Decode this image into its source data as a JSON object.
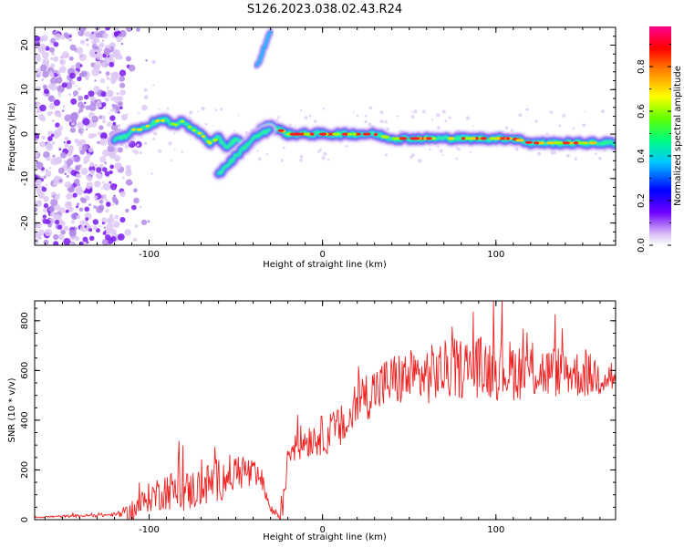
{
  "title": "S126.2023.038.02.43.R24",
  "chart_data": [
    {
      "type": "heatmap",
      "xlabel": "Height of straight line (km)",
      "ylabel": "Frequency (Hz)",
      "xlim": [
        -166,
        169
      ],
      "ylim": [
        -25,
        24
      ],
      "xticks": [
        -100,
        0,
        100
      ],
      "yticks": [
        -20,
        -10,
        0,
        10,
        20
      ],
      "colorbar": {
        "label": "Normalized spectral amplitude",
        "range": [
          0,
          0.98
        ],
        "ticks": [
          0.0,
          0.2,
          0.4,
          0.6,
          0.8
        ],
        "colors": [
          "#ffffff",
          "#d9c0f5",
          "#7000ff",
          "#0000ff",
          "#00c8ff",
          "#00ff80",
          "#80ff00",
          "#ffff00",
          "#ff8000",
          "#ff0000",
          "#ff0080"
        ]
      },
      "signal_trace": {
        "x": [
          -120,
          -115,
          -110,
          -105,
          -100,
          -95,
          -90,
          -85,
          -80,
          -75,
          -70,
          -65,
          -60,
          -55,
          -50,
          -45,
          -40,
          -35,
          -30,
          -25,
          -20,
          -15,
          -10,
          -5,
          0,
          10,
          20,
          30,
          40,
          50,
          60,
          70,
          80,
          90,
          100,
          110,
          120,
          130,
          140,
          150,
          160,
          169
        ],
        "y": [
          -1,
          -1,
          1,
          1,
          2,
          3,
          3,
          2,
          3,
          1,
          0,
          -2,
          -1,
          -3,
          -1,
          -3,
          -1,
          1,
          2,
          1,
          0,
          0,
          0,
          0,
          0,
          0,
          0,
          0,
          -1,
          -1,
          -1,
          -1,
          -1,
          -1,
          -1,
          -1,
          -2,
          -2,
          -2,
          -2,
          -2,
          -2
        ]
      },
      "lower_branch": {
        "x": [
          -60,
          -55,
          -50,
          -45,
          -40,
          -35,
          -30
        ],
        "y": [
          -9,
          -7,
          -5,
          -3,
          -1,
          0,
          1
        ]
      },
      "upper_branch": {
        "x": [
          -38,
          -35,
          -32,
          -30
        ],
        "y": [
          15,
          18,
          21,
          23
        ]
      }
    },
    {
      "type": "line",
      "xlabel": "Height of straight line (km)",
      "ylabel": "SNR (10 * v/v)",
      "xlim": [
        -166,
        169
      ],
      "ylim": [
        0,
        880
      ],
      "xticks": [
        -100,
        0,
        100
      ],
      "yticks": [
        0,
        200,
        400,
        600,
        800
      ],
      "line_color": "#ee2222",
      "envelope": {
        "x": [
          -166,
          -140,
          -120,
          -110,
          -100,
          -90,
          -80,
          -70,
          -60,
          -50,
          -45,
          -40,
          -35,
          -30,
          -25,
          -22,
          -20,
          -15,
          -10,
          -5,
          0,
          5,
          10,
          15,
          20,
          30,
          40,
          50,
          60,
          70,
          80,
          90,
          100,
          110,
          120,
          130,
          140,
          150,
          160,
          169
        ],
        "y": [
          10,
          15,
          20,
          30,
          90,
          120,
          110,
          130,
          160,
          190,
          200,
          170,
          160,
          40,
          20,
          80,
          280,
          300,
          320,
          330,
          340,
          350,
          370,
          380,
          480,
          520,
          560,
          570,
          580,
          600,
          610,
          615,
          610,
          600,
          600,
          590,
          600,
          580,
          580,
          575
        ]
      },
      "noise_amplitude": [
        [
          -166,
          3
        ],
        [
          -120,
          8
        ],
        [
          -110,
          40
        ],
        [
          -90,
          80
        ],
        [
          -60,
          90
        ],
        [
          -40,
          70
        ],
        [
          -30,
          15
        ],
        [
          -22,
          60
        ],
        [
          -15,
          70
        ],
        [
          0,
          80
        ],
        [
          20,
          100
        ],
        [
          60,
          120
        ],
        [
          100,
          130
        ],
        [
          169,
          80
        ]
      ]
    }
  ]
}
